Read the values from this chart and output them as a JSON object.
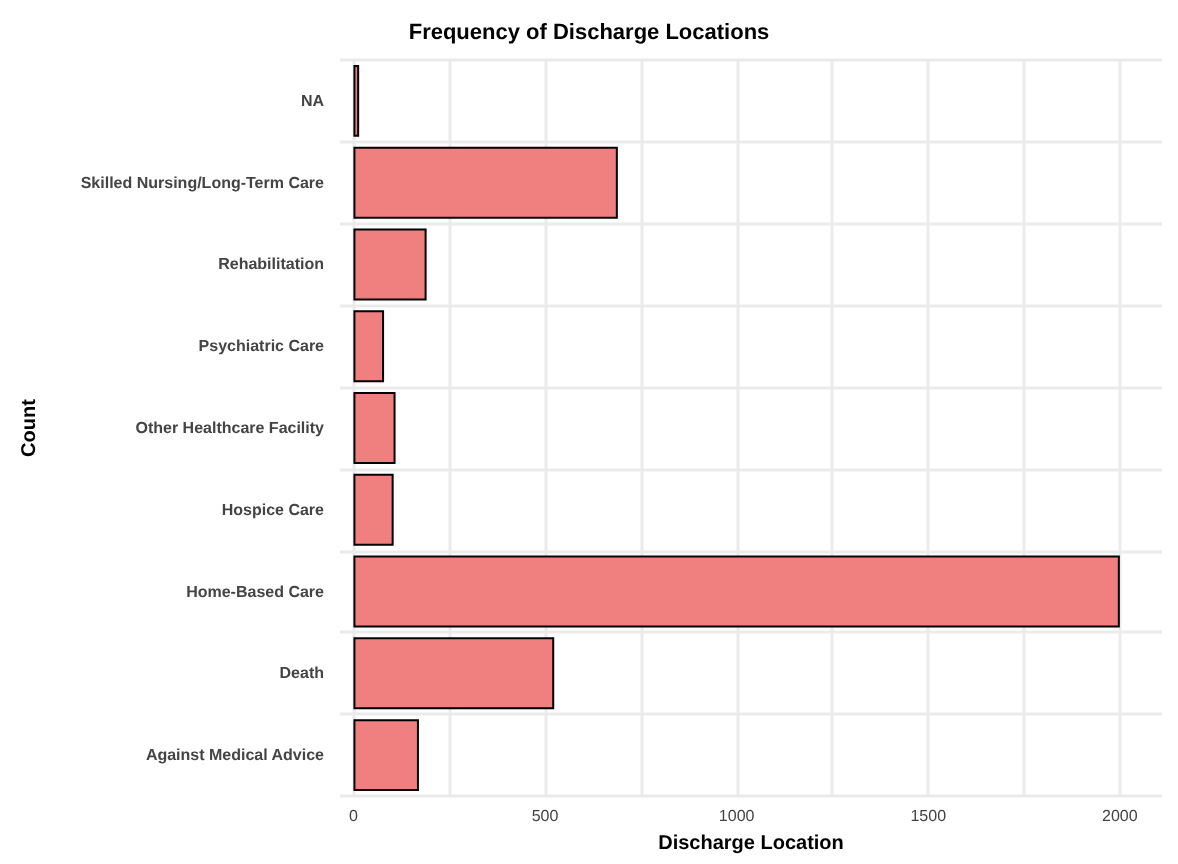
{
  "chart_data": {
    "type": "bar",
    "orientation": "horizontal",
    "title": "Frequency of Discharge Locations",
    "xlabel": "Discharge Location",
    "ylabel": "Count",
    "categories": [
      "NA",
      "Skilled Nursing/Long-Term Care",
      "Rehabilitation",
      "Psychiatric Care",
      "Other Healthcare Facility",
      "Hospice Care",
      "Home-Based Care",
      "Death",
      "Against Medical Advice"
    ],
    "values": [
      15,
      690,
      191,
      80,
      110,
      105,
      2000,
      524,
      171
    ],
    "color": "#f08080",
    "xlim": [
      -35,
      2110
    ],
    "xticks": [
      0,
      {
        "value": 250,
        "label": null
      },
      500,
      {
        "value": 750,
        "label": null
      },
      1000,
      {
        "value": 1250,
        "label": null
      },
      1500,
      {
        "value": 1750,
        "label": null
      },
      2000
    ],
    "grid": true
  }
}
